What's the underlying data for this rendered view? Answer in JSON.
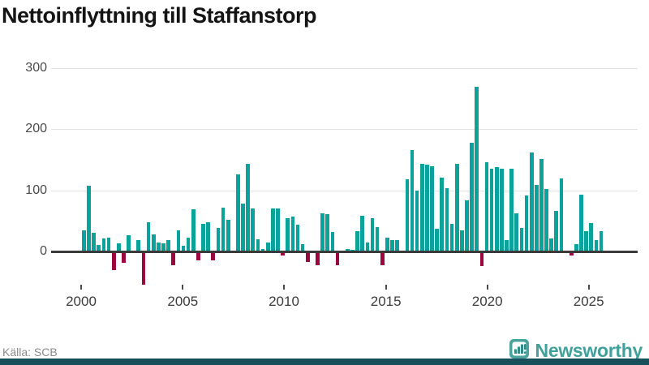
{
  "header": {
    "title": "Nettoinflyttning till Staffanstorp"
  },
  "chart_data": {
    "type": "bar",
    "title": "Nettoinflyttning till Staffanstorp",
    "frequency": "quarterly",
    "x_start": {
      "year": 2000,
      "quarter": 1
    },
    "values": [
      35,
      107,
      30,
      10,
      21,
      22,
      -31,
      13,
      -18,
      27,
      0,
      19,
      -54,
      48,
      28,
      15,
      13,
      19,
      -22,
      34,
      9,
      23,
      69,
      -15,
      45,
      48,
      -15,
      38,
      72,
      52,
      0,
      126,
      79,
      144,
      70,
      20,
      4,
      14,
      70,
      70,
      -6,
      55,
      57,
      44,
      12,
      -17,
      0,
      -23,
      63,
      61,
      32,
      -23,
      0,
      4,
      2,
      33,
      59,
      15,
      55,
      40,
      -23,
      22,
      18,
      18,
      0,
      118,
      166,
      100,
      143,
      142,
      139,
      37,
      121,
      104,
      45,
      143,
      35,
      84,
      178,
      270,
      -24,
      146,
      135,
      138,
      136,
      18,
      136,
      62,
      39,
      91,
      162,
      109,
      151,
      102,
      21,
      66,
      119,
      0,
      -7,
      12,
      93,
      33,
      46,
      19,
      33
    ],
    "x_tick_labels": [
      "2000",
      "2005",
      "2010",
      "2015",
      "2020",
      "2025"
    ],
    "y_ticks": [
      0,
      100,
      200,
      300
    ],
    "ylim": [
      -66,
      318
    ],
    "grid": "horizontal-only",
    "legend": "none",
    "bar_color_positive": "#0aa29b",
    "bar_color_negative": "#9a063e",
    "zero_line_color": "#3a3a3a",
    "gridline_color": "#e3e3e3"
  },
  "footer": {
    "source_label": "Källa: SCB",
    "brand": "Newsworthy"
  },
  "icons": {
    "brand_logo": "newsworthy-chart-pin-icon"
  }
}
